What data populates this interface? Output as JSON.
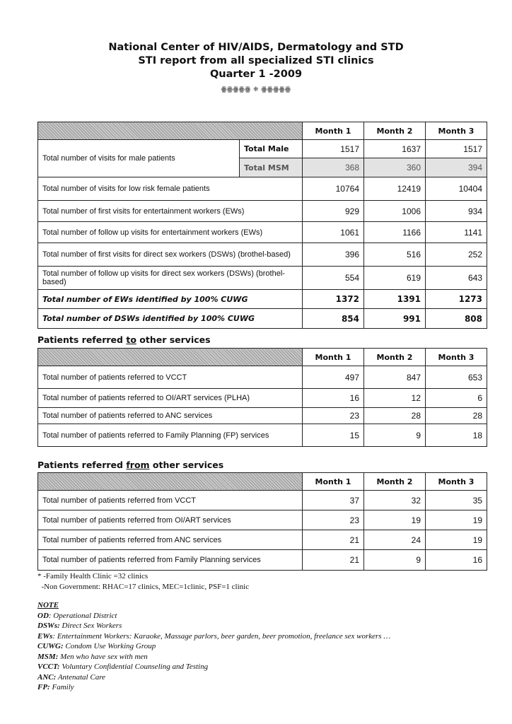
{
  "header": {
    "line1": "National Center of HIV/AIDS, Dermatology and STD",
    "line2": "STI report from all specialized STI clinics",
    "line3": "Quarter 1 -2009",
    "ornament": "ꙮꙮꙮꙮꙮ ❈ ꙮꙮꙮꙮꙮ"
  },
  "months": [
    "Month 1",
    "Month 2",
    "Month 3"
  ],
  "table1": {
    "male": {
      "label": "Total number of visits for male patients",
      "sub": [
        {
          "label": "Total Male",
          "values": [
            "1517",
            "1637",
            "1517"
          ]
        },
        {
          "label": "Total MSM",
          "values": [
            "368",
            "360",
            "394"
          ]
        }
      ]
    },
    "rows": [
      {
        "label": "Total number of visits for low risk female patients",
        "values": [
          "10764",
          "12419",
          "10404"
        ]
      },
      {
        "label": "Total number of first visits for entertainment workers (EWs)",
        "values": [
          "929",
          "1006",
          "934"
        ]
      },
      {
        "label": "Total number of follow up visits for entertainment workers (EWs)",
        "values": [
          "1061",
          "1166",
          "1141"
        ]
      },
      {
        "label": "Total number of first visits for direct sex workers (DSWs) (brothel-based)",
        "values": [
          "396",
          "516",
          "252"
        ]
      },
      {
        "label": "Total number of follow up visits for direct sex workers (DSWs) (brothel-based)",
        "values": [
          "554",
          "619",
          "643"
        ]
      },
      {
        "label": "Total number of EWs identified by 100% CUWG",
        "values": [
          "1372",
          "1391",
          "1273"
        ],
        "bold": true
      },
      {
        "label": "Total number of DSWs identified by 100% CUWG",
        "values": [
          "854",
          "991",
          "808"
        ],
        "bold": true
      }
    ]
  },
  "table2": {
    "title_pre": "Patients referred ",
    "title_u": "to",
    "title_post": " other services",
    "rows": [
      {
        "label": "Total number of patients referred to VCCT",
        "values": [
          "497",
          "847",
          "653"
        ]
      },
      {
        "label": "Total number of patients referred to OI/ART services (PLHA)",
        "values": [
          "16",
          "12",
          "6"
        ]
      },
      {
        "label": "Total number of patients referred to ANC services",
        "values": [
          "23",
          "28",
          "28"
        ]
      },
      {
        "label": "Total number of patients referred to Family Planning (FP) services",
        "values": [
          "15",
          "9",
          "18"
        ]
      }
    ]
  },
  "table3": {
    "title_pre": "Patients referred ",
    "title_u": "from",
    "title_post": " other services",
    "rows": [
      {
        "label": "Total number of patients referred from VCCT",
        "values": [
          "37",
          "32",
          "35"
        ]
      },
      {
        "label": "Total number of patients referred from OI/ART services",
        "values": [
          "23",
          "19",
          "19"
        ]
      },
      {
        "label": "Total number of patients referred from ANC services",
        "values": [
          "21",
          "24",
          "19"
        ]
      },
      {
        "label": "Total number of patients referred from Family Planning services",
        "values": [
          "21",
          "9",
          "16"
        ]
      }
    ]
  },
  "footnotes": [
    "* -Family Health Clinic =32 clinics",
    "  -Non Government: RHAC=17 clinics, MEC=1clinic, PSF=1 clinic"
  ],
  "note_title": "NOTE",
  "notes": [
    {
      "k": "OD",
      "v": ": Operational District"
    },
    {
      "k": "DSWs:",
      "v": " Direct Sex Workers"
    },
    {
      "k": "EWs",
      "v": ": Entertainment Workers: Karaoke, Massage parlors, beer garden, beer promotion, freelance sex workers …"
    },
    {
      "k": "CUWG:",
      "v": " Condom Use Working Group"
    },
    {
      "k": "MSM:",
      "v": " Men who have sex with men"
    },
    {
      "k": "VCCT:",
      "v": " Voluntary Confidential Counseling and Testing"
    },
    {
      "k": "ANC:",
      "v": " Antenatal Care"
    },
    {
      "k": "FP:",
      "v": " Family"
    }
  ]
}
